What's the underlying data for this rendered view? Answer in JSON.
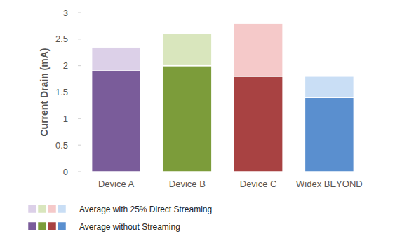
{
  "chart_data": {
    "type": "bar",
    "stacked": true,
    "y_label": "Current Drain (mA)",
    "categories": [
      "Device A",
      "Device B",
      "Device C",
      "Widex BEYOND"
    ],
    "series": [
      {
        "name": "Average without Streaming",
        "values": [
          1.9,
          2.0,
          1.8,
          1.4
        ],
        "colors": [
          "#7a5c9a",
          "#7c9c3a",
          "#a84242",
          "#5a8fcf"
        ]
      },
      {
        "name": "Average with 25% Direct Streaming",
        "values": [
          0.45,
          0.6,
          1.0,
          0.4
        ],
        "colors": [
          "#dcd0e8",
          "#d9e6bd",
          "#f5c9c9",
          "#c9def5"
        ]
      }
    ],
    "ylim": [
      0,
      3
    ],
    "yticks": [
      0,
      0.5,
      1,
      1.5,
      2,
      2.5,
      3
    ],
    "grid": false,
    "legend": "bottom"
  }
}
